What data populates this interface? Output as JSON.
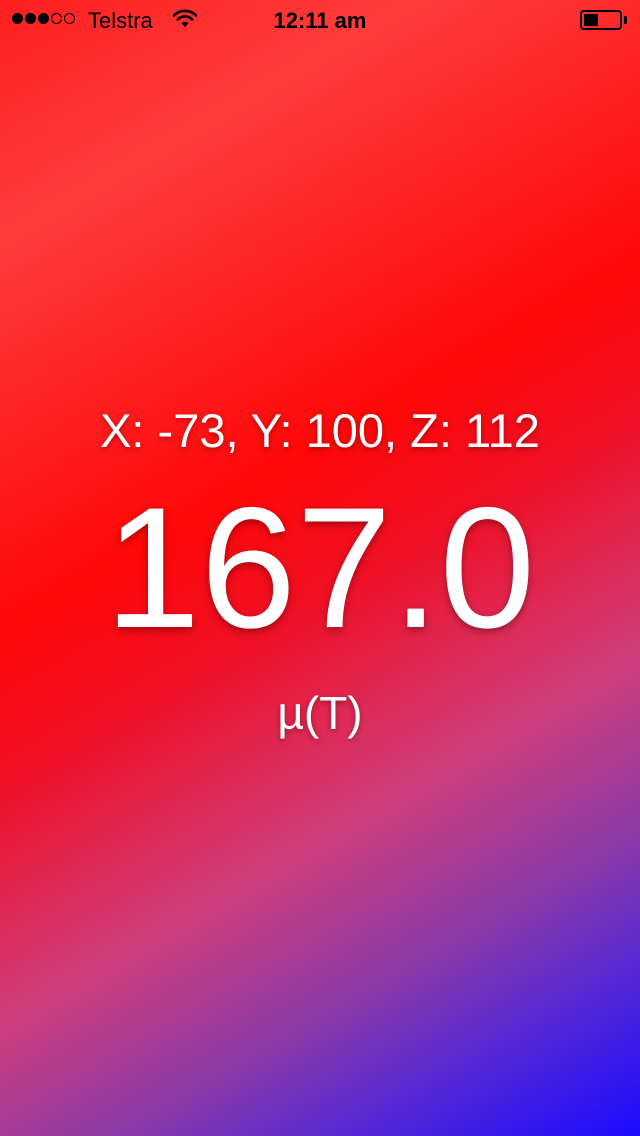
{
  "status_bar": {
    "signal_bars_total": 5,
    "signal_bars_filled": 3,
    "carrier": "Telstra",
    "time": "12:11 am",
    "battery_level": 0.4
  },
  "readout": {
    "axes": "X: -73, Y: 100, Z: 112",
    "magnitude": "167.0",
    "unit": "µ(T)"
  },
  "colors": {
    "text": "#ffffff",
    "gradient_top": "#ff1f1f",
    "gradient_mid": "#ff0808",
    "gradient_bottom": "#1a0cff"
  }
}
